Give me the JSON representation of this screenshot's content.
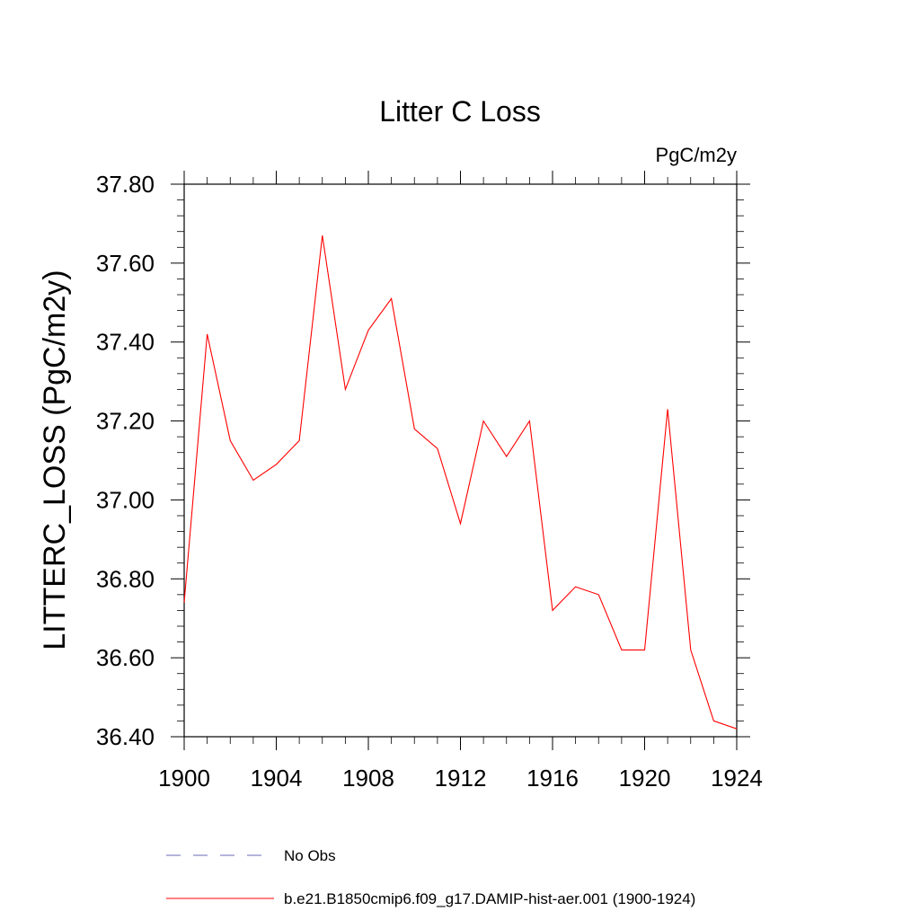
{
  "chart_data": {
    "type": "line",
    "title": "Litter C Loss",
    "units_label": "PgC/m2y",
    "ylabel": "LITTERC_LOSS  (PgC/m2y)",
    "xlabel": "",
    "xlim": [
      1900,
      1924
    ],
    "ylim": [
      36.4,
      37.8
    ],
    "x_ticks": [
      1900,
      1904,
      1908,
      1912,
      1916,
      1920,
      1924
    ],
    "x_tick_labels": [
      "1900",
      "1904",
      "1908",
      "1912",
      "1916",
      "1920",
      "1924"
    ],
    "y_ticks": [
      36.4,
      36.6,
      36.8,
      37.0,
      37.2,
      37.4,
      37.6,
      37.8
    ],
    "y_tick_labels": [
      "36.40",
      "36.60",
      "36.80",
      "37.00",
      "37.20",
      "37.40",
      "37.60",
      "37.80"
    ],
    "grid": false,
    "legend_position": "bottom",
    "series": [
      {
        "name": "b.e21.B1850cmip6.f09_g17.DAMIP-hist-aer.001 (1900-1924)",
        "color": "#ff0000",
        "dash": "solid",
        "x": [
          1900,
          1901,
          1902,
          1903,
          1904,
          1905,
          1906,
          1907,
          1908,
          1909,
          1910,
          1911,
          1912,
          1913,
          1914,
          1915,
          1916,
          1917,
          1918,
          1919,
          1920,
          1921,
          1922,
          1923,
          1924
        ],
        "y": [
          36.74,
          37.42,
          37.15,
          37.05,
          37.09,
          37.15,
          37.67,
          37.28,
          37.43,
          37.51,
          37.18,
          37.13,
          36.94,
          37.2,
          37.11,
          37.2,
          36.72,
          36.78,
          36.76,
          36.62,
          36.62,
          37.23,
          36.62,
          36.44,
          36.42
        ]
      }
    ],
    "legend": [
      {
        "label": "No Obs",
        "color": "#6a6ab8",
        "dash": "dashed"
      },
      {
        "label": "b.e21.B1850cmip6.f09_g17.DAMIP-hist-aer.001 (1900-1924)",
        "color": "#ff0000",
        "dash": "solid"
      }
    ]
  }
}
